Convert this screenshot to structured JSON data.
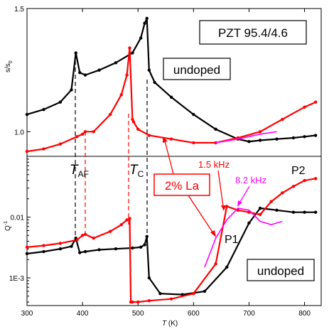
{
  "chart_data": [
    {
      "type": "line",
      "panel": "top",
      "ylabel": "s/s0",
      "ylabel_main": "s/s",
      "ylabel_sub": "0",
      "yscale": "linear",
      "ylim": [
        0.9,
        1.5
      ],
      "xlim": [
        300,
        830
      ],
      "y_ticks": [
        "1.0",
        "1.5"
      ],
      "colors": {
        "undoped": "#000000",
        "la": "#ff0000",
        "la_fit": "#ff00ff"
      },
      "series": [
        {
          "name": "undoped",
          "x": [
            300,
            330,
            360,
            380,
            388,
            395,
            405,
            430,
            460,
            490,
            505,
            512,
            516,
            520,
            530,
            560,
            600,
            640,
            680,
            700,
            720,
            750,
            780,
            800,
            820
          ],
          "y": [
            1.07,
            1.09,
            1.12,
            1.17,
            1.32,
            1.24,
            1.23,
            1.25,
            1.28,
            1.32,
            1.38,
            1.44,
            1.46,
            1.25,
            1.2,
            1.14,
            1.07,
            1.01,
            0.97,
            0.96,
            0.965,
            0.97,
            0.975,
            0.98,
            0.985
          ]
        },
        {
          "name": "2% La",
          "x": [
            300,
            330,
            360,
            390,
            400,
            405,
            420,
            450,
            470,
            480,
            485,
            490,
            492,
            500,
            520,
            560,
            600,
            640,
            680,
            720,
            760,
            800,
            820
          ],
          "y": [
            0.92,
            0.93,
            0.95,
            0.98,
            0.99,
            1.0,
            1.0,
            1.07,
            1.15,
            1.23,
            1.34,
            1.05,
            1.04,
            1.01,
            0.985,
            0.97,
            0.955,
            0.955,
            0.975,
            1.0,
            1.05,
            1.1,
            1.12
          ]
        },
        {
          "name": "2% La fit",
          "x": [
            640,
            680,
            720,
            750
          ],
          "y": [
            0.955,
            0.97,
            0.99,
            1.0
          ]
        }
      ]
    },
    {
      "type": "line",
      "panel": "bottom",
      "ylabel": "Q-1",
      "ylabel_main": "Q",
      "ylabel_sup": "-1",
      "yscale": "log",
      "ylim": [
        0.00035,
        0.1
      ],
      "xlim": [
        300,
        830
      ],
      "xlabel": "T (K)",
      "xlabel_main": "T",
      "xlabel_unit": "(K)",
      "x_ticks": [
        "300",
        "400",
        "500",
        "600",
        "700",
        "800"
      ],
      "y_ticks": [
        "1E-3",
        "0.01"
      ],
      "series": [
        {
          "name": "undoped",
          "x": [
            300,
            330,
            360,
            380,
            388,
            395,
            405,
            430,
            460,
            490,
            505,
            512,
            516,
            520,
            540,
            580,
            620,
            660,
            700,
            720,
            750,
            780,
            800,
            820
          ],
          "y": [
            0.0025,
            0.0027,
            0.003,
            0.0033,
            0.0045,
            0.0026,
            0.0027,
            0.0029,
            0.003,
            0.0031,
            0.0032,
            0.0035,
            0.0048,
            0.001,
            0.00055,
            0.00053,
            0.0006,
            0.0015,
            0.008,
            0.014,
            0.013,
            0.012,
            0.012,
            0.012
          ]
        },
        {
          "name": "2% La",
          "x": [
            300,
            330,
            360,
            390,
            400,
            405,
            420,
            450,
            470,
            480,
            485,
            487,
            490,
            500,
            520,
            560,
            600,
            640,
            660,
            680,
            700,
            720,
            740,
            760,
            780,
            800,
            820
          ],
          "y": [
            0.0032,
            0.0034,
            0.0037,
            0.0042,
            0.005,
            0.0052,
            0.0045,
            0.0058,
            0.0075,
            0.009,
            0.0095,
            0.0004,
            0.0004,
            0.0004,
            0.00042,
            0.00045,
            0.00055,
            0.0017,
            0.015,
            0.013,
            0.012,
            0.011,
            0.018,
            0.025,
            0.032,
            0.04,
            0.043
          ]
        },
        {
          "name": "2% La fit",
          "x": [
            620,
            640,
            660,
            680,
            700,
            720,
            740,
            760
          ],
          "y": [
            0.0015,
            0.0045,
            0.009,
            0.014,
            0.013,
            0.0085,
            0.0075,
            0.0085
          ]
        }
      ]
    }
  ],
  "labels": {
    "title": "PZT 95.4/4.6",
    "undoped_top": "undoped",
    "undoped_bottom": "undoped",
    "la": "2% La",
    "taf": "T",
    "taf_sub": "AF",
    "tc": "T",
    "tc_sub": "C",
    "freq1": "1.5 kHz",
    "freq2": "8.2 kHz",
    "p1": "P1",
    "p2": "P2"
  }
}
